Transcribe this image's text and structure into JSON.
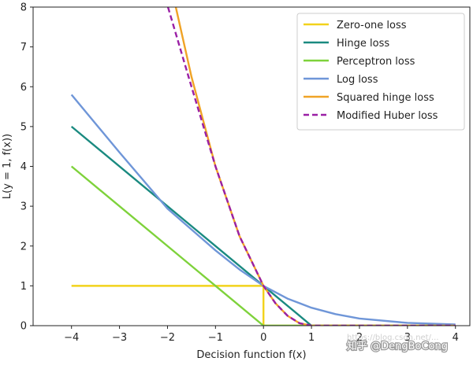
{
  "chart_data": {
    "type": "line",
    "xlabel": "Decision function f(x)",
    "ylabel": "L(y = 1, f(x))",
    "xlim": [
      -4.8,
      4.3
    ],
    "ylim": [
      0,
      8
    ],
    "xticks": [
      -4,
      -3,
      -2,
      -1,
      0,
      1,
      2,
      3,
      4
    ],
    "yticks": [
      0,
      1,
      2,
      3,
      4,
      5,
      6,
      7,
      8
    ],
    "x_tick_labels": [
      "−4",
      "−3",
      "−2",
      "−1",
      "0",
      "1",
      "2",
      "3",
      "4"
    ],
    "y_tick_labels": [
      "0",
      "1",
      "2",
      "3",
      "4",
      "5",
      "6",
      "7",
      "8"
    ],
    "legend_position": "top-right",
    "series": [
      {
        "name": "Zero-one loss",
        "color": "#f2d21b",
        "style": "solid",
        "points": [
          [
            -4,
            1
          ],
          [
            0,
            1
          ],
          [
            0,
            0
          ],
          [
            4,
            0
          ]
        ]
      },
      {
        "name": "Hinge loss",
        "color": "#1a8a80",
        "style": "solid",
        "points": [
          [
            -4,
            5
          ],
          [
            1,
            0
          ],
          [
            4,
            0
          ]
        ]
      },
      {
        "name": "Perceptron loss",
        "color": "#7ed23b",
        "style": "solid",
        "points": [
          [
            -4,
            4
          ],
          [
            0,
            0
          ],
          [
            4,
            0
          ]
        ]
      },
      {
        "name": "Log loss",
        "color": "#6f96d8",
        "style": "solid",
        "points": [
          [
            -4,
            5.8
          ],
          [
            -3,
            4.35
          ],
          [
            -2,
            2.94
          ],
          [
            -1,
            1.89
          ],
          [
            -0.5,
            1.41
          ],
          [
            0,
            1.0
          ],
          [
            0.5,
            0.68
          ],
          [
            1,
            0.45
          ],
          [
            1.5,
            0.29
          ],
          [
            2,
            0.18
          ],
          [
            3,
            0.07
          ],
          [
            4,
            0.03
          ]
        ]
      },
      {
        "name": "Squared hinge loss",
        "color": "#f0a326",
        "style": "solid",
        "points": [
          [
            -1.84,
            8.07
          ],
          [
            -1.5,
            6.25
          ],
          [
            -1,
            4
          ],
          [
            -0.5,
            2.25
          ],
          [
            0,
            1
          ],
          [
            0.25,
            0.5625
          ],
          [
            0.5,
            0.25
          ],
          [
            0.75,
            0.0625
          ],
          [
            1,
            0
          ],
          [
            4,
            0
          ]
        ]
      },
      {
        "name": "Modified Huber loss",
        "color": "#9a1fa5",
        "style": "dashed",
        "points": [
          [
            -1.99,
            8
          ],
          [
            -1.5,
            6
          ],
          [
            -1,
            4
          ],
          [
            -0.5,
            2.25
          ],
          [
            0,
            1
          ],
          [
            0.25,
            0.5625
          ],
          [
            0.5,
            0.25
          ],
          [
            0.75,
            0.0625
          ],
          [
            1,
            0
          ],
          [
            4,
            0
          ]
        ]
      }
    ]
  },
  "watermark": {
    "text": "知乎 @DengBoCong",
    "faint_text": "https://blog.csdn.net/..."
  }
}
